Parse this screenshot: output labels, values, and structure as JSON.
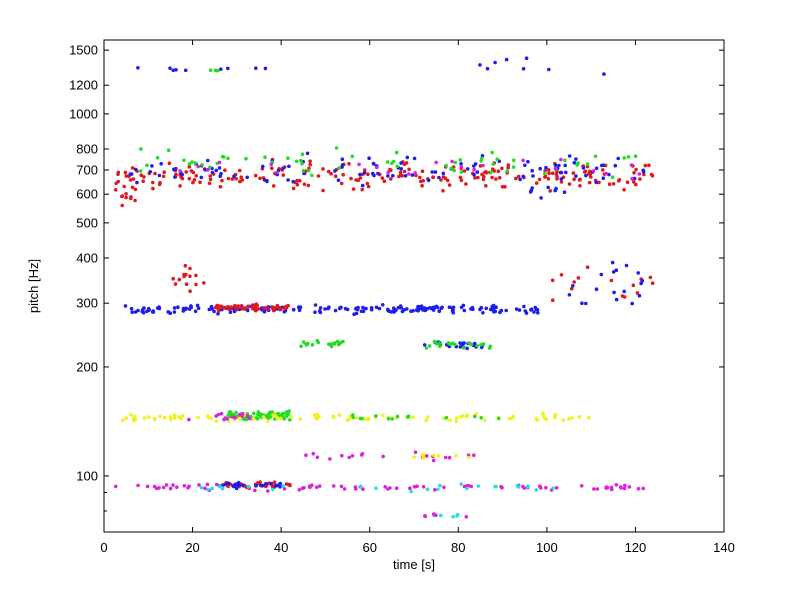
{
  "chart_data": {
    "type": "scatter",
    "title": "",
    "xlabel": "time [s]",
    "ylabel": "pitch [Hz]",
    "xlim": [
      0,
      140
    ],
    "ylim": [
      70,
      1600
    ],
    "yscale": "log",
    "grid": false,
    "legend": "none",
    "x_ticks": [
      0,
      20,
      40,
      60,
      80,
      100,
      120,
      140
    ],
    "x_tick_labels": [
      "0",
      "20",
      "40",
      "60",
      "80",
      "100",
      "120",
      "140"
    ],
    "y_ticks": [
      100,
      200,
      300,
      400,
      500,
      600,
      700,
      800,
      1000,
      1200,
      1500
    ],
    "y_tick_labels": [
      "100",
      "200",
      "300",
      "400",
      "500",
      "600",
      "700",
      "800",
      "1000",
      "1200",
      "1500"
    ],
    "colors": {
      "red": "#e0191f",
      "blue": "#1d1df0",
      "green": "#22dd22",
      "yellow": "#f2f21a",
      "magenta": "#e020e0",
      "cyan": "#20e0e0"
    },
    "clusters": [
      {
        "color": "red",
        "x_range": [
          2,
          124
        ],
        "y_range": [
          600,
          760
        ],
        "count": 230
      },
      {
        "color": "blue",
        "x_range": [
          3,
          122
        ],
        "y_range": [
          620,
          800
        ],
        "count": 110
      },
      {
        "color": "green",
        "x_range": [
          8,
          122
        ],
        "y_range": [
          650,
          820
        ],
        "count": 60
      },
      {
        "color": "magenta",
        "x_range": [
          10,
          122
        ],
        "y_range": [
          640,
          780
        ],
        "count": 25
      },
      {
        "color": "red",
        "x_range": [
          3,
          8
        ],
        "y_range": [
          540,
          620
        ],
        "count": 8
      },
      {
        "color": "blue",
        "x_range": [
          96,
          104
        ],
        "y_range": [
          580,
          640
        ],
        "count": 8
      },
      {
        "color": "blue",
        "x_range": [
          4,
          98
        ],
        "y_range": [
          278,
          300
        ],
        "count": 190
      },
      {
        "color": "red",
        "x_range": [
          25,
          42
        ],
        "y_range": [
          283,
          300
        ],
        "count": 55
      },
      {
        "color": "red",
        "x_range": [
          15,
          25
        ],
        "y_range": [
          300,
          400
        ],
        "count": 14
      },
      {
        "color": "red",
        "x_range": [
          100,
          124
        ],
        "y_range": [
          300,
          400
        ],
        "count": 16
      },
      {
        "color": "blue",
        "x_range": [
          105,
          122
        ],
        "y_range": [
          260,
          420
        ],
        "count": 18
      },
      {
        "color": "green",
        "x_range": [
          44,
          54
        ],
        "y_range": [
          225,
          240
        ],
        "count": 18
      },
      {
        "color": "blue",
        "x_range": [
          72,
          86
        ],
        "y_range": [
          222,
          238
        ],
        "count": 25
      },
      {
        "color": "green",
        "x_range": [
          72,
          88
        ],
        "y_range": [
          222,
          240
        ],
        "count": 18
      },
      {
        "color": "green",
        "x_range": [
          28,
          42
        ],
        "y_range": [
          142,
          152
        ],
        "count": 75
      },
      {
        "color": "yellow",
        "x_range": [
          2,
          112
        ],
        "y_range": [
          140,
          150
        ],
        "count": 95
      },
      {
        "color": "green",
        "x_range": [
          55,
          90
        ],
        "y_range": [
          140,
          150
        ],
        "count": 14
      },
      {
        "color": "magenta",
        "x_range": [
          18,
          34
        ],
        "y_range": [
          140,
          152
        ],
        "count": 14
      },
      {
        "color": "magenta",
        "x_range": [
          2,
          122
        ],
        "y_range": [
          90,
          96
        ],
        "count": 85
      },
      {
        "color": "red",
        "x_range": [
          26,
          42
        ],
        "y_range": [
          92,
          97
        ],
        "count": 35
      },
      {
        "color": "blue",
        "x_range": [
          26,
          40
        ],
        "y_range": [
          92,
          97
        ],
        "count": 25
      },
      {
        "color": "cyan",
        "x_range": [
          20,
          102
        ],
        "y_range": [
          90,
          96
        ],
        "count": 25
      },
      {
        "color": "magenta",
        "x_range": [
          44,
          86
        ],
        "y_range": [
          110,
          117
        ],
        "count": 20
      },
      {
        "color": "yellow",
        "x_range": [
          70,
          84
        ],
        "y_range": [
          110,
          117
        ],
        "count": 8
      },
      {
        "color": "cyan",
        "x_range": [
          71,
          80
        ],
        "y_range": [
          76,
          79
        ],
        "count": 6
      },
      {
        "color": "magenta",
        "x_range": [
          72,
          82
        ],
        "y_range": [
          76,
          79
        ],
        "count": 5
      },
      {
        "color": "blue",
        "x_range": [
          4,
          40
        ],
        "y_range": [
          1300,
          1360
        ],
        "count": 9
      },
      {
        "color": "blue",
        "x_range": [
          82,
          120
        ],
        "y_range": [
          1220,
          1480
        ],
        "count": 8
      },
      {
        "color": "green",
        "x_range": [
          24,
          26
        ],
        "y_range": [
          1310,
          1330
        ],
        "count": 4
      }
    ]
  }
}
